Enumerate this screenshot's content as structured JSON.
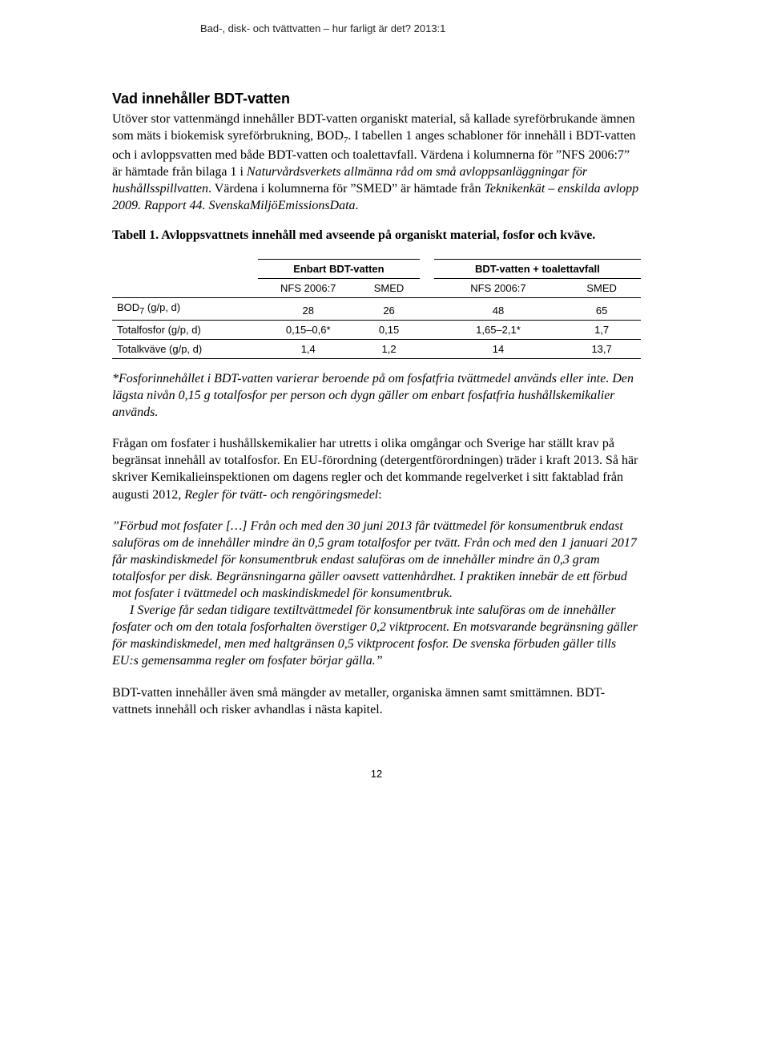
{
  "header": "Bad-, disk- och tvättvatten – hur farligt är det? 2013:1",
  "heading": "Vad innehåller BDT-vatten",
  "intro_html": "Utöver stor vattenmängd innehåller BDT-vatten organiskt material, så kallade syreförbrukande ämnen som mäts i biokemisk syreförbrukning, BOD<sub>7</sub>. I tabellen 1 anges schabloner för innehåll i BDT-vatten och i avloppsvatten med både BDT-vatten och toalettavfall. Värdena i kolumnerna för &rdquo;NFS 2006:7&rdquo; är hämtade från bilaga 1 i <em>Naturvårdsverkets allmänna råd om små avloppsanläggningar för hushållsspillvatten</em>. Värdena i kolumnerna för &rdquo;SMED&rdquo; är hämtade från <em>Teknikenkät – enskilda avlopp 2009. Rapport 44. SvenskaMiljöEmissionsData</em>.",
  "table_caption": "Tabell 1. Avloppsvattnets innehåll med avseende på organiskt material, fosfor och kväve.",
  "table": {
    "group_headers": [
      "Enbart BDT-vatten",
      "BDT-vatten + toalettavfall"
    ],
    "sub_headers": [
      "NFS 2006:7",
      "SMED",
      "NFS 2006:7",
      "SMED"
    ],
    "rows": [
      {
        "label_html": "BOD<sub>7</sub> (g/p, d)",
        "cells": [
          "28",
          "26",
          "48",
          "65"
        ]
      },
      {
        "label_html": "Totalfosfor (g/p, d)",
        "cells": [
          "0,15–0,6*",
          "0,15",
          "1,65–2,1*",
          "1,7"
        ]
      },
      {
        "label_html": "Totalkväve (g/p, d)",
        "cells": [
          "1,4",
          "1,2",
          "14",
          "13,7"
        ]
      }
    ]
  },
  "footnote_html": "<em>*Fosforinnehållet i BDT-vatten varierar beroende på om fosfatfria tvättmedel används eller inte. Den lägsta nivån 0,15 g totalfosfor per person och dygn gäller om enbart fosfatfria hushållskemikalier används.</em>",
  "para2_html": "Frågan om fosfater i hushållskemikalier har utretts i olika omgångar och Sverige har ställt krav på begränsat innehåll av totalfosfor. En EU-förordning (detergentförordningen) träder i kraft 2013. Så här skriver Kemikalieinspektionen om dagens regler och det kommande regelverket i sitt faktablad från augusti 2012, <em>Regler för tvätt- och rengöringsmedel</em>:",
  "quote1_html": "<em>&rdquo;Förbud mot fosfater […] Från och med den 30 juni 2013 får tvättmedel för konsumentbruk endast saluföras om de innehåller mindre än 0,5 gram totalfosfor per tvätt. Från och med den 1 januari 2017 får maskindiskmedel för konsumentbruk endast saluföras om de innehåller mindre än 0,3 gram totalfosfor per disk. Begränsningarna gäller oavsett vattenhårdhet. I praktiken innebär de ett förbud mot fosfater i tvättmedel och maskindiskmedel för konsumentbruk.</em>",
  "quote2_html": "<em>I Sverige får sedan tidigare textiltvättmedel för konsumentbruk inte saluföras om de innehåller fosfater och om den totala fosforhalten överstiger 0,2 viktprocent. En motsvarande begränsning gäller för maskindiskmedel, men med haltgränsen 0,5 viktprocent fosfor. De svenska förbuden gäller tills EU:s gemensamma regler om fosfater börjar gälla.&rdquo;</em>",
  "para3": "BDT-vatten innehåller även små mängder av metaller, organiska ämnen samt smittämnen. BDT-vattnets innehåll och risker avhandlas i nästa kapitel.",
  "page_number": "12"
}
